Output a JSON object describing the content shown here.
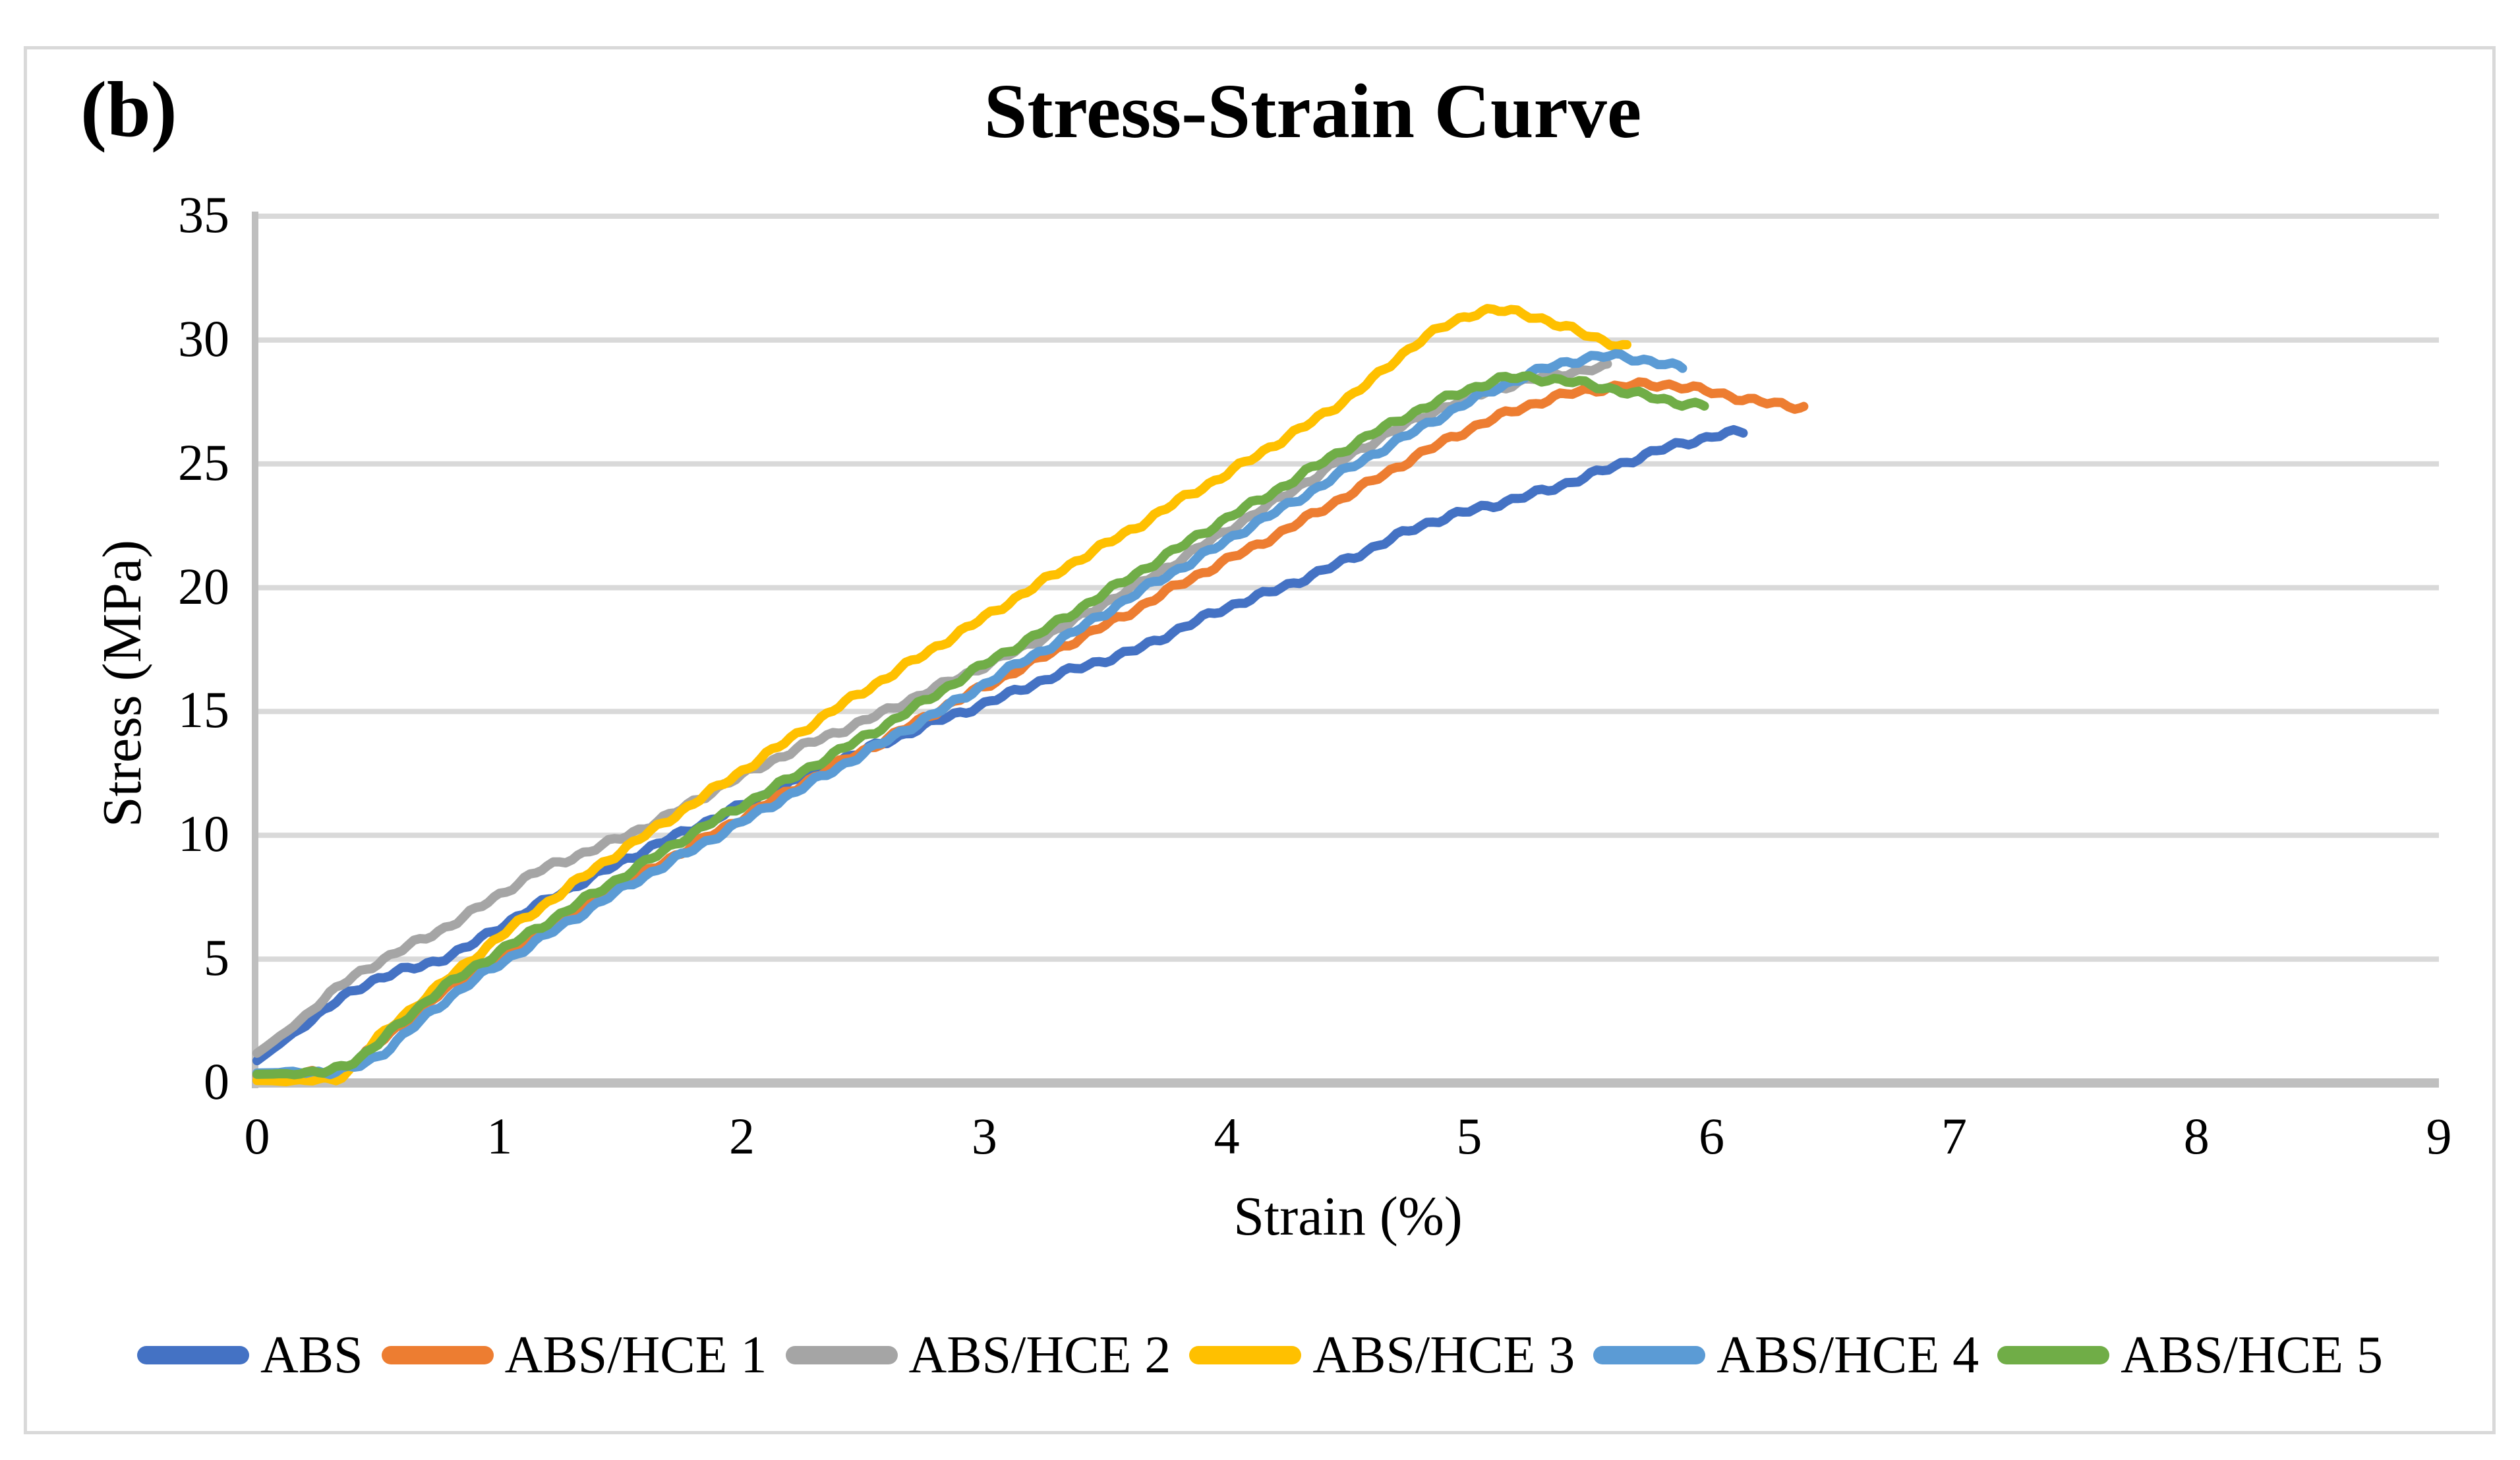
{
  "figure_label": "(b)",
  "chart_data": {
    "type": "line",
    "title": "Stress-Strain Curve",
    "xlabel": "Strain (%)",
    "ylabel": "Stress (MPa)",
    "xlim": [
      0,
      9
    ],
    "ylim": [
      0,
      35
    ],
    "x_ticks": [
      0,
      1,
      2,
      3,
      4,
      5,
      6,
      7,
      8,
      9
    ],
    "y_ticks": [
      0,
      5,
      10,
      15,
      20,
      25,
      30,
      35
    ],
    "grid": "horizontal-only",
    "legend_position": "bottom",
    "axis_color": "#bfbfbf",
    "gridline_color": "#d9d9d9",
    "frame_color": "#d9d9d9",
    "series": [
      {
        "name": "ABS",
        "color": "#4472C4",
        "points": [
          [
            0,
            0.9
          ],
          [
            0.15,
            2.0
          ],
          [
            0.3,
            3.1
          ],
          [
            0.45,
            4.0
          ],
          [
            0.55,
            4.4
          ],
          [
            0.7,
            4.8
          ],
          [
            0.85,
            5.4
          ],
          [
            1.0,
            6.3
          ],
          [
            1.2,
            7.4
          ],
          [
            1.4,
            8.4
          ],
          [
            1.6,
            9.4
          ],
          [
            1.8,
            10.3
          ],
          [
            2.0,
            11.2
          ],
          [
            2.2,
            12.1
          ],
          [
            2.4,
            13.0
          ],
          [
            2.6,
            13.8
          ],
          [
            2.8,
            14.6
          ],
          [
            3.0,
            15.3
          ],
          [
            3.2,
            16.1
          ],
          [
            3.4,
            16.8
          ],
          [
            3.6,
            17.4
          ],
          [
            3.8,
            18.3
          ],
          [
            4.0,
            19.2
          ],
          [
            4.2,
            19.9
          ],
          [
            4.4,
            20.7
          ],
          [
            4.6,
            21.6
          ],
          [
            4.8,
            22.5
          ],
          [
            5.0,
            23.1
          ],
          [
            5.2,
            23.6
          ],
          [
            5.4,
            24.2
          ],
          [
            5.6,
            24.9
          ],
          [
            5.8,
            25.6
          ],
          [
            6.0,
            26.1
          ],
          [
            6.13,
            26.3
          ]
        ]
      },
      {
        "name": "ABS/HCE 1",
        "color": "#ED7D31",
        "points": [
          [
            0,
            0.3
          ],
          [
            0.2,
            0.4
          ],
          [
            0.35,
            0.5
          ],
          [
            0.5,
            1.6
          ],
          [
            0.65,
            2.8
          ],
          [
            0.8,
            3.9
          ],
          [
            1.0,
            5.1
          ],
          [
            1.2,
            6.3
          ],
          [
            1.4,
            7.4
          ],
          [
            1.6,
            8.5
          ],
          [
            1.8,
            9.6
          ],
          [
            2.0,
            10.7
          ],
          [
            2.2,
            11.8
          ],
          [
            2.4,
            12.9
          ],
          [
            2.6,
            13.9
          ],
          [
            2.8,
            15.0
          ],
          [
            3.0,
            16.0
          ],
          [
            3.2,
            17.0
          ],
          [
            3.4,
            18.0
          ],
          [
            3.6,
            19.0
          ],
          [
            3.8,
            20.1
          ],
          [
            4.0,
            21.1
          ],
          [
            4.2,
            22.1
          ],
          [
            4.4,
            23.2
          ],
          [
            4.6,
            24.3
          ],
          [
            4.8,
            25.4
          ],
          [
            5.0,
            26.4
          ],
          [
            5.2,
            27.2
          ],
          [
            5.4,
            27.8
          ],
          [
            5.6,
            28.1
          ],
          [
            5.8,
            28.2
          ],
          [
            6.0,
            27.9
          ],
          [
            6.2,
            27.5
          ],
          [
            6.38,
            27.3
          ]
        ]
      },
      {
        "name": "ABS/HCE 2",
        "color": "#A5A5A5",
        "points": [
          [
            0,
            1.2
          ],
          [
            0.15,
            2.3
          ],
          [
            0.3,
            3.6
          ],
          [
            0.45,
            4.6
          ],
          [
            0.6,
            5.4
          ],
          [
            0.8,
            6.4
          ],
          [
            1.0,
            7.6
          ],
          [
            1.15,
            8.5
          ],
          [
            1.3,
            9.1
          ],
          [
            1.5,
            9.9
          ],
          [
            1.7,
            10.8
          ],
          [
            1.9,
            11.9
          ],
          [
            2.1,
            12.9
          ],
          [
            2.3,
            13.8
          ],
          [
            2.5,
            14.6
          ],
          [
            2.7,
            15.5
          ],
          [
            2.9,
            16.4
          ],
          [
            3.1,
            17.3
          ],
          [
            3.3,
            18.3
          ],
          [
            3.5,
            19.4
          ],
          [
            3.7,
            20.5
          ],
          [
            3.9,
            21.7
          ],
          [
            4.1,
            22.9
          ],
          [
            4.3,
            24.1
          ],
          [
            4.5,
            25.3
          ],
          [
            4.7,
            26.4
          ],
          [
            4.9,
            27.3
          ],
          [
            5.1,
            28.0
          ],
          [
            5.3,
            28.5
          ],
          [
            5.45,
            28.75
          ],
          [
            5.57,
            28.9
          ]
        ]
      },
      {
        "name": "ABS/HCE 3",
        "color": "#FFC000",
        "points": [
          [
            0,
            0.1
          ],
          [
            0.2,
            0.1
          ],
          [
            0.35,
            0.3
          ],
          [
            0.5,
            1.8
          ],
          [
            0.65,
            3.1
          ],
          [
            0.8,
            4.3
          ],
          [
            1.0,
            5.9
          ],
          [
            1.2,
            7.3
          ],
          [
            1.4,
            8.7
          ],
          [
            1.6,
            10.0
          ],
          [
            1.8,
            11.3
          ],
          [
            2.0,
            12.6
          ],
          [
            2.2,
            13.9
          ],
          [
            2.4,
            15.2
          ],
          [
            2.6,
            16.4
          ],
          [
            2.8,
            17.6
          ],
          [
            3.0,
            18.8
          ],
          [
            3.2,
            20.0
          ],
          [
            3.4,
            21.2
          ],
          [
            3.6,
            22.3
          ],
          [
            3.8,
            23.5
          ],
          [
            4.0,
            24.6
          ],
          [
            4.2,
            25.8
          ],
          [
            4.4,
            27.0
          ],
          [
            4.6,
            28.4
          ],
          [
            4.8,
            30.0
          ],
          [
            5.0,
            31.0
          ],
          [
            5.1,
            31.2
          ],
          [
            5.25,
            31.0
          ],
          [
            5.4,
            30.5
          ],
          [
            5.55,
            30.0
          ],
          [
            5.65,
            29.7
          ]
        ]
      },
      {
        "name": "ABS/HCE 4",
        "color": "#5B9BD5",
        "points": [
          [
            0,
            0.4
          ],
          [
            0.2,
            0.45
          ],
          [
            0.35,
            0.5
          ],
          [
            0.5,
            1.1
          ],
          [
            0.65,
            2.3
          ],
          [
            0.8,
            3.5
          ],
          [
            0.95,
            4.5
          ],
          [
            1.1,
            5.4
          ],
          [
            1.3,
            6.6
          ],
          [
            1.5,
            7.8
          ],
          [
            1.7,
            8.9
          ],
          [
            1.9,
            10.0
          ],
          [
            2.1,
            11.1
          ],
          [
            2.3,
            12.2
          ],
          [
            2.5,
            13.3
          ],
          [
            2.7,
            14.4
          ],
          [
            2.9,
            15.5
          ],
          [
            3.1,
            16.7
          ],
          [
            3.3,
            17.8
          ],
          [
            3.5,
            19.0
          ],
          [
            3.7,
            20.2
          ],
          [
            3.9,
            21.3
          ],
          [
            4.1,
            22.5
          ],
          [
            4.3,
            23.6
          ],
          [
            4.5,
            24.8
          ],
          [
            4.7,
            25.9
          ],
          [
            4.9,
            27.0
          ],
          [
            5.1,
            28.0
          ],
          [
            5.3,
            28.8
          ],
          [
            5.45,
            29.2
          ],
          [
            5.58,
            29.35
          ],
          [
            5.72,
            29.2
          ],
          [
            5.88,
            28.85
          ]
        ]
      },
      {
        "name": "ABS/HCE 5",
        "color": "#70AD47",
        "points": [
          [
            0,
            0.35
          ],
          [
            0.2,
            0.4
          ],
          [
            0.3,
            0.5
          ],
          [
            0.45,
            1.2
          ],
          [
            0.6,
            2.5
          ],
          [
            0.75,
            3.7
          ],
          [
            0.9,
            4.7
          ],
          [
            1.0,
            5.3
          ],
          [
            1.2,
            6.5
          ],
          [
            1.4,
            7.7
          ],
          [
            1.6,
            8.9
          ],
          [
            1.8,
            10.1
          ],
          [
            2.0,
            11.2
          ],
          [
            2.2,
            12.3
          ],
          [
            2.4,
            13.4
          ],
          [
            2.6,
            14.5
          ],
          [
            2.8,
            15.7
          ],
          [
            3.0,
            16.9
          ],
          [
            3.2,
            18.0
          ],
          [
            3.4,
            19.2
          ],
          [
            3.6,
            20.4
          ],
          [
            3.8,
            21.6
          ],
          [
            4.0,
            22.8
          ],
          [
            4.2,
            23.9
          ],
          [
            4.4,
            25.1
          ],
          [
            4.6,
            26.2
          ],
          [
            4.8,
            27.2
          ],
          [
            5.0,
            28.0
          ],
          [
            5.15,
            28.45
          ],
          [
            5.35,
            28.4
          ],
          [
            5.55,
            28.1
          ],
          [
            5.7,
            27.8
          ],
          [
            5.85,
            27.5
          ],
          [
            5.97,
            27.35
          ]
        ]
      }
    ]
  }
}
